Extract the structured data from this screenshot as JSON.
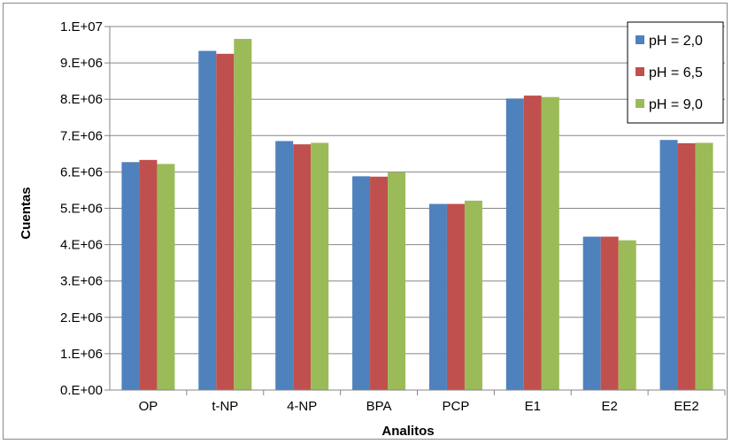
{
  "chart_data": {
    "type": "bar",
    "title": "",
    "xlabel": "Analitos",
    "ylabel": "Cuentas",
    "categories": [
      "OP",
      "t-NP",
      "4-NP",
      "BPA",
      "PCP",
      "E1",
      "E2",
      "EE2"
    ],
    "ylim": [
      0,
      10000000
    ],
    "yticks": [
      0,
      1000000,
      2000000,
      3000000,
      4000000,
      5000000,
      6000000,
      7000000,
      8000000,
      9000000,
      10000000
    ],
    "ytick_labels": [
      "0.E+00",
      "1.E+06",
      "2.E+06",
      "3.E+06",
      "4.E+06",
      "5.E+06",
      "6.E+06",
      "7.E+06",
      "8.E+06",
      "9.E+06",
      "1.E+07"
    ],
    "grid": true,
    "legend_position": "top-right",
    "series": [
      {
        "name": "pH = 2,0",
        "color": "#4F81BD",
        "values": [
          6270000,
          9330000,
          6850000,
          5880000,
          5120000,
          8020000,
          4220000,
          6880000
        ]
      },
      {
        "name": "pH = 6,5",
        "color": "#C0504D",
        "values": [
          6330000,
          9250000,
          6760000,
          5870000,
          5120000,
          8100000,
          4220000,
          6790000
        ]
      },
      {
        "name": "pH = 9,0",
        "color": "#9BBB59",
        "values": [
          6220000,
          9660000,
          6800000,
          5990000,
          5210000,
          8060000,
          4120000,
          6800000
        ]
      }
    ]
  }
}
